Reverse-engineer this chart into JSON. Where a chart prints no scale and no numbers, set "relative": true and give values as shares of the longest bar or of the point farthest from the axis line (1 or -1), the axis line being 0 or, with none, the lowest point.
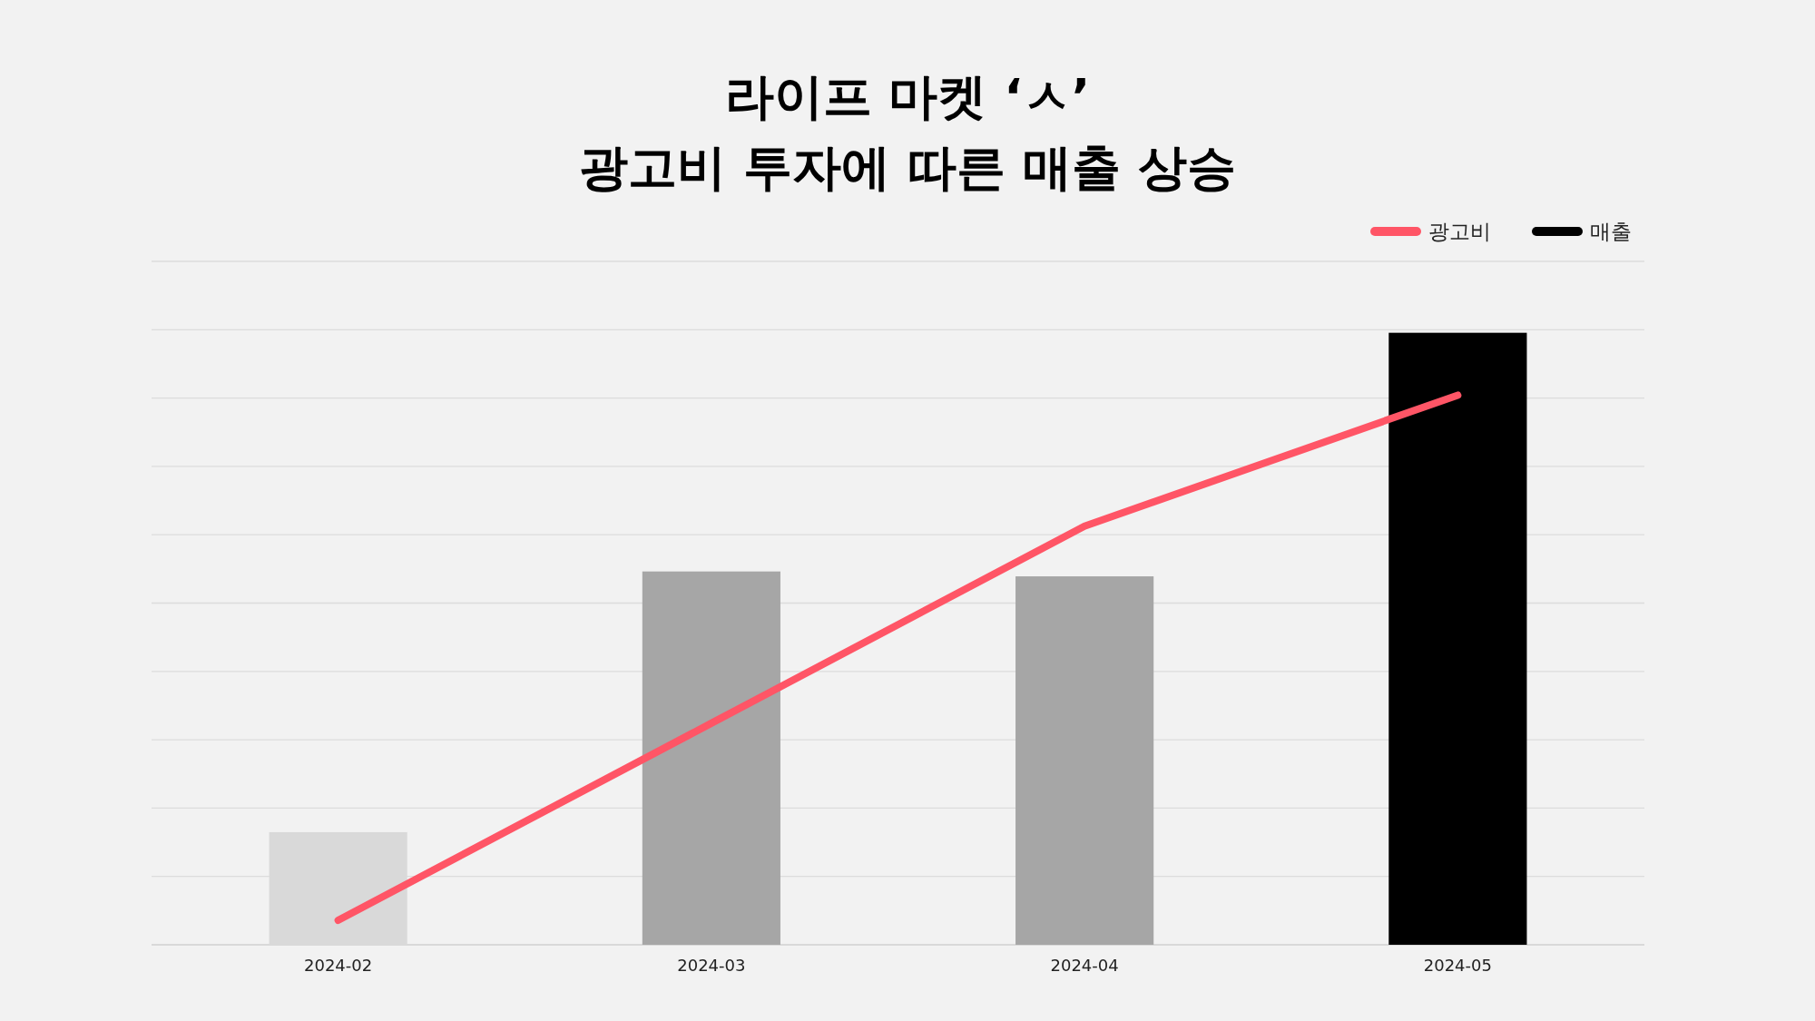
{
  "chart_data": {
    "type": "bar",
    "title": "라이프 마켓 ‘ㅅ’\n광고비 투자에 따른 매출 상승",
    "categories": [
      "2024-02",
      "2024-03",
      "2024-04",
      "2024-05"
    ],
    "relative": true,
    "grid": "y",
    "legend": "top right",
    "series": [
      {
        "name": "광고비",
        "type": "line",
        "color": "#ff5566",
        "values": [
          0.04,
          0.362,
          0.684,
          0.898
        ]
      },
      {
        "name": "매출",
        "color": "#000000",
        "colors": [
          "#d9d9d9",
          "#a6a6a6",
          "#a6a6a6",
          "#000000"
        ],
        "values": [
          0.184,
          0.61,
          0.602,
          1
        ]
      }
    ]
  }
}
